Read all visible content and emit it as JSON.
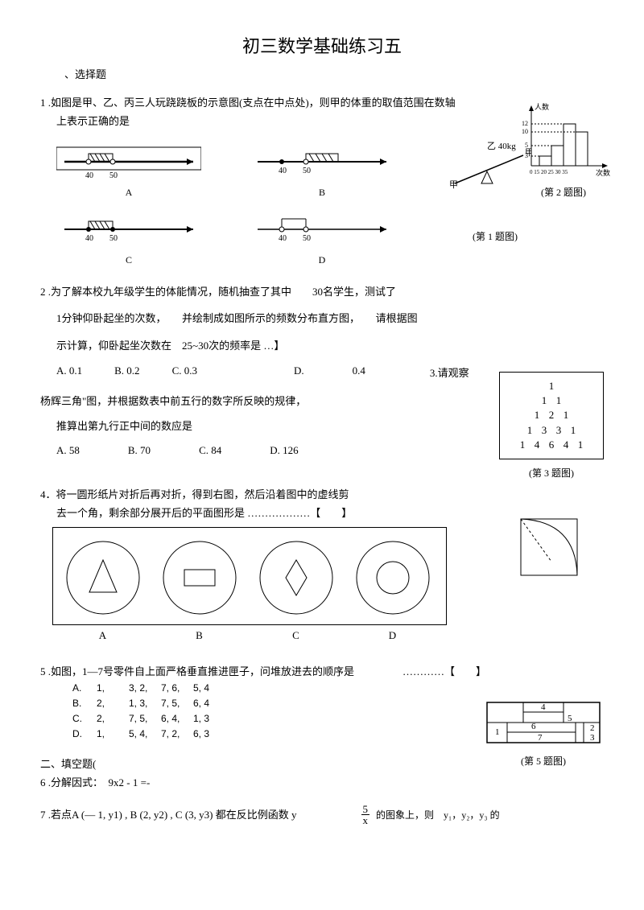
{
  "title": "初三数学基础练习五",
  "section1": "、选择题",
  "q1": {
    "num": "1",
    "text": ".如图是甲、乙、丙三人玩跷跷板的示意图(支点在中点处)，则甲的体重的取值范围在数轴",
    "text2": "上表示正确的是",
    "labels": {
      "a": "A",
      "b": "B",
      "c": "C",
      "d": "D"
    },
    "fig_label": "(第 1 题图)",
    "seesaw_label": "乙 40kg",
    "tick40": "40",
    "tick50": "50"
  },
  "q2": {
    "num": "2",
    "text": ".为了解本校九年级学生的体能情况，随机抽查了其中",
    "text_30": "30名学生，测试了",
    "text2": "1分钟仰卧起坐的次数，",
    "text3": "并绘制成如图所示的频数分布直方图，",
    "text4": "请根据图",
    "text5": "示计算，仰卧起坐次数在",
    "text6": "25~30次的频率是 …】",
    "opts": {
      "a": "A. 0.1",
      "b": "B. 0.2",
      "c": "C. 0.3",
      "d": "D.",
      "d_val": "0.4"
    },
    "fig_label": "(第 2 题图)",
    "ylabel": "人数",
    "xlabel": "次数",
    "yticks": [
      "12",
      "10",
      "5",
      "3"
    ],
    "xticks": "0 15 20 25 30 35"
  },
  "q3": {
    "text_intro": "3.请观察",
    "text": "杨辉三角\"图，并根据数表中前五行的数字所反映的规律，",
    "text2": "推算出第九行正中间的数应是",
    "opts": {
      "a": "A. 58",
      "b": "B. 70",
      "c": "C. 84",
      "d": "D. 126"
    },
    "fig_label": "(第 3 题图)",
    "rows": [
      [
        "1"
      ],
      [
        "1",
        "1"
      ],
      [
        "1",
        "2",
        "1"
      ],
      [
        "1",
        "3",
        "3",
        "1"
      ],
      [
        "1",
        "4",
        "6",
        "4",
        "1"
      ]
    ]
  },
  "q4": {
    "num": "4．",
    "text": "将一圆形纸片对折后再对折，得到右图，然后沿着图中的虚线剪",
    "text2": "去一个角，剩余部分展开后的平面图形是",
    "dots": "………………",
    "bracket": "【　　】",
    "labels": {
      "a": "A",
      "b": "B",
      "c": "C",
      "d": "D"
    }
  },
  "q5": {
    "num": "5",
    "text": ".如图，1—7号零件自上面严格垂直推进匣子，问堆放进去的顺序是",
    "dots": "…………",
    "bracket": "【　　】",
    "opts": [
      {
        "l": "A.",
        "seq": [
          "1,",
          "3, 2,",
          "7, 6,",
          "5, 4"
        ]
      },
      {
        "l": "B.",
        "seq": [
          "2,",
          "1, 3,",
          "7, 5,",
          "6, 4"
        ]
      },
      {
        "l": "C.",
        "seq": [
          "2,",
          "7, 5,",
          "6, 4,",
          "1, 3"
        ]
      },
      {
        "l": "D.",
        "seq": [
          "1,",
          "5, 4,",
          "7, 2,",
          "6, 3"
        ]
      }
    ],
    "fig_label": "(第 5 题图)",
    "box_nums": [
      "1",
      "2",
      "3",
      "4",
      "5",
      "6",
      "7"
    ]
  },
  "section2": "二、填空题(",
  "q6": {
    "num": "6",
    "text": ".分解因式：",
    "expr": "9x2 - 1 =-"
  },
  "q7": {
    "num": "7",
    "text": ".若点A (— 1, y1) , B (2, y2) , C (3, y3) 都在反比例函数 y",
    "frac_num": "5",
    "frac_den": "x",
    "text2": "的图象上，则",
    "text3": "y₁，y₂，y₃ 的"
  }
}
